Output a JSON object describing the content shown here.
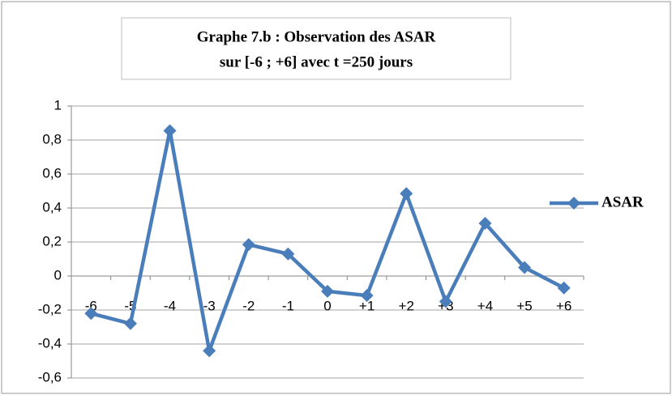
{
  "chart_data": {
    "type": "line",
    "title": [
      "Graphe 7.b : Observation des ASAR",
      "sur  [-6 ; +6] avec t =250 jours"
    ],
    "categories": [
      "-6",
      "-5",
      "-4",
      "-3",
      "-2",
      "-1",
      "0",
      "+1",
      "+2",
      "+3",
      "+4",
      "+5",
      "+6"
    ],
    "series": [
      {
        "name": "ASAR",
        "color": "#4a7ebb",
        "values": [
          -0.22,
          -0.28,
          0.855,
          -0.44,
          0.185,
          0.13,
          -0.09,
          -0.115,
          0.485,
          -0.15,
          0.31,
          0.05,
          -0.07
        ]
      }
    ],
    "ylim": [
      -0.6,
      1
    ],
    "yticks": [
      {
        "value": -0.6,
        "label": "-0,6"
      },
      {
        "value": -0.4,
        "label": "-0,4"
      },
      {
        "value": -0.2,
        "label": "-0,2"
      },
      0,
      {
        "value": 0.2,
        "label": "0,2"
      },
      {
        "value": 0.4,
        "label": "0,4"
      },
      {
        "value": 0.6,
        "label": "0,6"
      },
      {
        "value": 0.8,
        "label": "0,8"
      },
      1
    ],
    "grid": true,
    "legend": "right"
  }
}
